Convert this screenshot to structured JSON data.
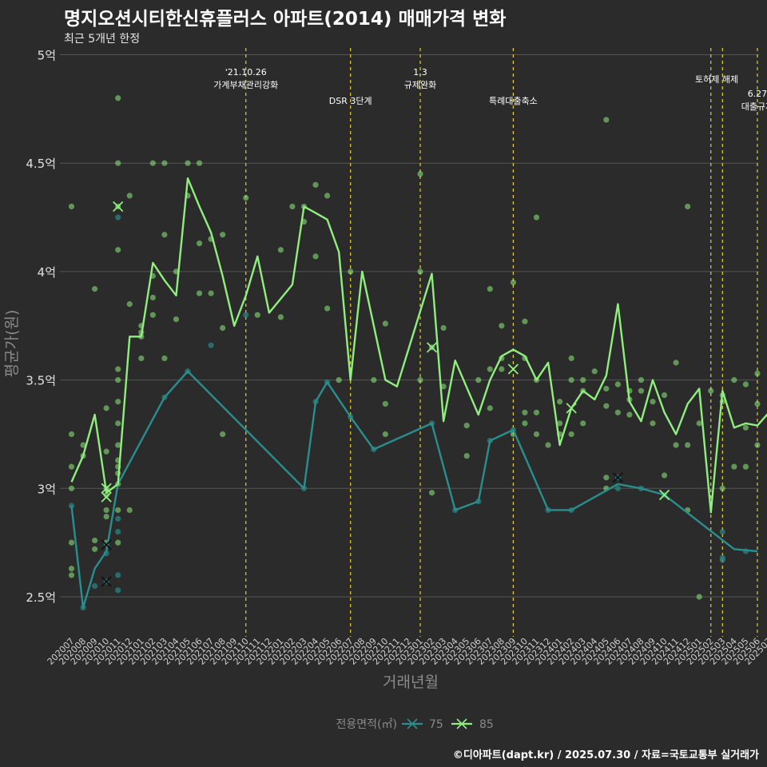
{
  "header": {
    "title": "명지오션시티한신휴플러스 아파트(2014) 매매가격 변화",
    "subtitle": "최근 5개년 한정"
  },
  "footer": {
    "credit": "©디아파트(dapt.kr) / 2025.07.30 / 자료=국토교통부 실거래가"
  },
  "colors": {
    "background": "#2b2b2b",
    "grid": "#555555",
    "series_75": "#2a8e8e",
    "series_85": "#90ee7e",
    "policy_line": "#e8d21a"
  },
  "chart_data": {
    "type": "line",
    "xlabel": "거래년월",
    "ylabel": "평균가(원)",
    "ylim": [
      2.33,
      5.0
    ],
    "yticks": [
      2.5,
      3.0,
      3.5,
      4.0,
      4.5,
      5.0
    ],
    "ytick_labels": [
      "2.5억",
      "3억",
      "3.5억",
      "4억",
      "4.5억",
      "5억"
    ],
    "grid": true,
    "legend_position": "bottom",
    "legend_title": "전용면적(㎡)",
    "categories": [
      "202007",
      "202008",
      "202009",
      "202010",
      "202011",
      "202012",
      "202101",
      "202102",
      "202103",
      "202104",
      "202105",
      "202106",
      "202107",
      "202108",
      "202109",
      "202110",
      "202111",
      "202112",
      "202201",
      "202202",
      "202203",
      "202204",
      "202205",
      "202206",
      "202207",
      "202208",
      "202209",
      "202210",
      "202211",
      "202212",
      "202301",
      "202302",
      "202303",
      "202304",
      "202305",
      "202306",
      "202307",
      "202308",
      "202309",
      "202310",
      "202311",
      "202312",
      "202401",
      "202402",
      "202403",
      "202404",
      "202405",
      "202406",
      "202407",
      "202408",
      "202409",
      "202410",
      "202411",
      "202412",
      "202501",
      "202502",
      "202503",
      "202504",
      "202505",
      "202506",
      "202507"
    ],
    "series": [
      {
        "name": "75",
        "color": "#2a8e8e",
        "points": [
          [
            "202007",
            2.92
          ],
          [
            "202008",
            2.45
          ],
          [
            "202009",
            2.63
          ],
          [
            "202010",
            2.71
          ],
          [
            "202011",
            3.02
          ],
          [
            "202103",
            3.42
          ],
          [
            "202105",
            3.54
          ],
          [
            "202203",
            3.0
          ],
          [
            "202204",
            3.4
          ],
          [
            "202205",
            3.49
          ],
          [
            "202207",
            3.33
          ],
          [
            "202209",
            3.18
          ],
          [
            "202302",
            3.3
          ],
          [
            "202304",
            2.9
          ],
          [
            "202306",
            2.94
          ],
          [
            "202307",
            3.22
          ],
          [
            "202309",
            3.27
          ],
          [
            "202312",
            2.9
          ],
          [
            "202402",
            2.9
          ],
          [
            "202406",
            3.02
          ],
          [
            "202408",
            3.0
          ],
          [
            "202410",
            2.97
          ],
          [
            "202504",
            2.72
          ],
          [
            "202506",
            2.71
          ]
        ]
      },
      {
        "name": "85",
        "color": "#90ee7e",
        "points": [
          [
            "202007",
            3.03
          ],
          [
            "202008",
            3.15
          ],
          [
            "202009",
            3.34
          ],
          [
            "202010",
            2.98
          ],
          [
            "202011",
            3.02
          ],
          [
            "202012",
            3.7
          ],
          [
            "202101",
            3.7
          ],
          [
            "202102",
            4.04
          ],
          [
            "202103",
            3.96
          ],
          [
            "202104",
            3.89
          ],
          [
            "202105",
            4.43
          ],
          [
            "202106",
            4.3
          ],
          [
            "202107",
            4.18
          ],
          [
            "202108",
            3.98
          ],
          [
            "202109",
            3.75
          ],
          [
            "202110",
            3.89
          ],
          [
            "202111",
            4.07
          ],
          [
            "202112",
            3.81
          ],
          [
            "202202",
            3.94
          ],
          [
            "202203",
            4.3
          ],
          [
            "202204",
            4.27
          ],
          [
            "202205",
            4.24
          ],
          [
            "202206",
            4.09
          ],
          [
            "202207",
            3.5
          ],
          [
            "202208",
            4.0
          ],
          [
            "202210",
            3.5
          ],
          [
            "202211",
            3.47
          ],
          [
            "202302",
            3.99
          ],
          [
            "202303",
            3.31
          ],
          [
            "202304",
            3.59
          ],
          [
            "202306",
            3.34
          ],
          [
            "202307",
            3.5
          ],
          [
            "202308",
            3.61
          ],
          [
            "202309",
            3.64
          ],
          [
            "202310",
            3.61
          ],
          [
            "202311",
            3.5
          ],
          [
            "202312",
            3.58
          ],
          [
            "202401",
            3.2
          ],
          [
            "202402",
            3.37
          ],
          [
            "202403",
            3.45
          ],
          [
            "202404",
            3.41
          ],
          [
            "202405",
            3.52
          ],
          [
            "202406",
            3.85
          ],
          [
            "202407",
            3.4
          ],
          [
            "202408",
            3.31
          ],
          [
            "202409",
            3.5
          ],
          [
            "202410",
            3.35
          ],
          [
            "202411",
            3.25
          ],
          [
            "202412",
            3.39
          ],
          [
            "202501",
            3.46
          ],
          [
            "202502",
            2.89
          ],
          [
            "202503",
            3.45
          ],
          [
            "202504",
            3.28
          ],
          [
            "202505",
            3.3
          ],
          [
            "202506",
            3.29
          ],
          [
            "202507",
            3.35
          ]
        ]
      }
    ],
    "scatter_85": [
      [
        "202007",
        4.3
      ],
      [
        "202007",
        3.25
      ],
      [
        "202007",
        3.1
      ],
      [
        "202007",
        3.0
      ],
      [
        "202007",
        2.75
      ],
      [
        "202007",
        2.63
      ],
      [
        "202007",
        2.6
      ],
      [
        "202008",
        3.2
      ],
      [
        "202008",
        3.15
      ],
      [
        "202009",
        3.92
      ],
      [
        "202009",
        2.76
      ],
      [
        "202009",
        2.72
      ],
      [
        "202010",
        3.37
      ],
      [
        "202010",
        3.17
      ],
      [
        "202010",
        3.0
      ],
      [
        "202010",
        2.97
      ],
      [
        "202010",
        2.9
      ],
      [
        "202010",
        2.87
      ],
      [
        "202010",
        2.75
      ],
      [
        "202011",
        4.8
      ],
      [
        "202011",
        4.5
      ],
      [
        "202011",
        4.3
      ],
      [
        "202011",
        4.1
      ],
      [
        "202011",
        3.55
      ],
      [
        "202011",
        3.5
      ],
      [
        "202011",
        3.4
      ],
      [
        "202011",
        3.3
      ],
      [
        "202011",
        3.2
      ],
      [
        "202011",
        3.13
      ],
      [
        "202011",
        3.1
      ],
      [
        "202011",
        3.07
      ],
      [
        "202011",
        3.02
      ],
      [
        "202011",
        2.9
      ],
      [
        "202011",
        2.75
      ],
      [
        "202012",
        4.35
      ],
      [
        "202012",
        3.85
      ],
      [
        "202012",
        2.9
      ],
      [
        "202101",
        3.75
      ],
      [
        "202101",
        3.72
      ],
      [
        "202101",
        3.7
      ],
      [
        "202101",
        3.6
      ],
      [
        "202102",
        4.5
      ],
      [
        "202102",
        3.98
      ],
      [
        "202102",
        3.88
      ],
      [
        "202102",
        3.8
      ],
      [
        "202103",
        4.5
      ],
      [
        "202103",
        4.17
      ],
      [
        "202103",
        3.6
      ],
      [
        "202104",
        4.0
      ],
      [
        "202104",
        3.78
      ],
      [
        "202105",
        4.5
      ],
      [
        "202105",
        4.35
      ],
      [
        "202106",
        4.5
      ],
      [
        "202106",
        4.13
      ],
      [
        "202106",
        3.9
      ],
      [
        "202107",
        4.15
      ],
      [
        "202107",
        3.9
      ],
      [
        "202108",
        4.17
      ],
      [
        "202108",
        3.74
      ],
      [
        "202108",
        3.25
      ],
      [
        "202110",
        4.34
      ],
      [
        "202111",
        3.8
      ],
      [
        "202201",
        4.1
      ],
      [
        "202201",
        3.79
      ],
      [
        "202202",
        4.3
      ],
      [
        "202203",
        4.23
      ],
      [
        "202203",
        4.3
      ],
      [
        "202204",
        4.4
      ],
      [
        "202204",
        4.07
      ],
      [
        "202205",
        4.35
      ],
      [
        "202205",
        3.83
      ],
      [
        "202206",
        3.5
      ],
      [
        "202207",
        4.0
      ],
      [
        "202209",
        3.5
      ],
      [
        "202210",
        3.76
      ],
      [
        "202210",
        3.39
      ],
      [
        "202210",
        3.25
      ],
      [
        "202301",
        4.45
      ],
      [
        "202301",
        4.0
      ],
      [
        "202301",
        3.5
      ],
      [
        "202302",
        3.65
      ],
      [
        "202302",
        2.98
      ],
      [
        "202303",
        3.74
      ],
      [
        "202303",
        3.47
      ],
      [
        "202305",
        3.29
      ],
      [
        "202305",
        3.15
      ],
      [
        "202306",
        3.5
      ],
      [
        "202307",
        3.92
      ],
      [
        "202307",
        3.55
      ],
      [
        "202307",
        3.37
      ],
      [
        "202308",
        3.75
      ],
      [
        "202308",
        3.6
      ],
      [
        "202308",
        3.55
      ],
      [
        "202309",
        3.95
      ],
      [
        "202309",
        3.25
      ],
      [
        "202310",
        3.77
      ],
      [
        "202310",
        3.6
      ],
      [
        "202310",
        3.35
      ],
      [
        "202310",
        3.3
      ],
      [
        "202311",
        4.25
      ],
      [
        "202311",
        3.5
      ],
      [
        "202311",
        3.35
      ],
      [
        "202311",
        3.25
      ],
      [
        "202312",
        3.2
      ],
      [
        "202401",
        3.4
      ],
      [
        "202401",
        3.3
      ],
      [
        "202401",
        3.25
      ],
      [
        "202402",
        3.6
      ],
      [
        "202402",
        3.5
      ],
      [
        "202402",
        3.25
      ],
      [
        "202403",
        3.5
      ],
      [
        "202403",
        3.45
      ],
      [
        "202403",
        3.3
      ],
      [
        "202404",
        3.54
      ],
      [
        "202405",
        4.7
      ],
      [
        "202405",
        3.46
      ],
      [
        "202405",
        3.38
      ],
      [
        "202405",
        3.05
      ],
      [
        "202405",
        3.0
      ],
      [
        "202406",
        3.48
      ],
      [
        "202406",
        3.35
      ],
      [
        "202407",
        3.45
      ],
      [
        "202407",
        3.41
      ],
      [
        "202407",
        3.34
      ],
      [
        "202408",
        3.5
      ],
      [
        "202408",
        3.45
      ],
      [
        "202409",
        3.4
      ],
      [
        "202409",
        3.3
      ],
      [
        "202410",
        3.43
      ],
      [
        "202410",
        3.06
      ],
      [
        "202411",
        3.58
      ],
      [
        "202411",
        3.2
      ],
      [
        "202412",
        4.3
      ],
      [
        "202412",
        3.2
      ],
      [
        "202412",
        2.9
      ],
      [
        "202501",
        3.3
      ],
      [
        "202501",
        2.5
      ],
      [
        "202502",
        3.45
      ],
      [
        "202503",
        3.43
      ],
      [
        "202503",
        3.4
      ],
      [
        "202503",
        3.0
      ],
      [
        "202504",
        3.5
      ],
      [
        "202504",
        3.1
      ],
      [
        "202505",
        3.48
      ],
      [
        "202505",
        3.28
      ],
      [
        "202505",
        3.1
      ],
      [
        "202506",
        3.53
      ],
      [
        "202506",
        3.39
      ],
      [
        "202506",
        3.2
      ]
    ],
    "scatter_75": [
      [
        "202007",
        2.92
      ],
      [
        "202008",
        2.45
      ],
      [
        "202009",
        2.55
      ],
      [
        "202010",
        2.74
      ],
      [
        "202010",
        2.7
      ],
      [
        "202010",
        2.57
      ],
      [
        "202011",
        4.25
      ],
      [
        "202011",
        2.86
      ],
      [
        "202011",
        2.8
      ],
      [
        "202011",
        2.6
      ],
      [
        "202011",
        2.53
      ],
      [
        "202103",
        3.42
      ],
      [
        "202105",
        3.54
      ],
      [
        "202107",
        3.66
      ],
      [
        "202110",
        3.8
      ],
      [
        "202203",
        3.0
      ],
      [
        "202204",
        3.4
      ],
      [
        "202205",
        3.49
      ],
      [
        "202207",
        3.33
      ],
      [
        "202209",
        3.18
      ],
      [
        "202302",
        3.3
      ],
      [
        "202304",
        2.9
      ],
      [
        "202306",
        2.94
      ],
      [
        "202307",
        3.22
      ],
      [
        "202309",
        3.27
      ],
      [
        "202312",
        2.9
      ],
      [
        "202402",
        2.9
      ],
      [
        "202406",
        3.05
      ],
      [
        "202406",
        3.0
      ],
      [
        "202408",
        3.0
      ],
      [
        "202410",
        2.97
      ],
      [
        "202503",
        2.8
      ],
      [
        "202503",
        2.68
      ],
      [
        "202503",
        2.67
      ],
      [
        "202505",
        2.71
      ]
    ],
    "cross_75": [
      [
        "202010",
        2.74
      ],
      [
        "202010",
        2.57
      ],
      [
        "202406",
        3.05
      ]
    ],
    "cross_85": [
      [
        "202010",
        3.0
      ],
      [
        "202010",
        2.96
      ],
      [
        "202011",
        4.3
      ],
      [
        "202302",
        3.65
      ],
      [
        "202309",
        3.55
      ],
      [
        "202402",
        3.37
      ],
      [
        "202410",
        2.97
      ]
    ],
    "annotations": [
      {
        "at": "202110",
        "lines": [
          "'21.10.26",
          "가계부채관리강화"
        ],
        "level": 1
      },
      {
        "at": "202207",
        "lines": [
          "DSR 3단계"
        ],
        "level": 3
      },
      {
        "at": "202301",
        "lines": [
          "1.3",
          "규제완화"
        ],
        "level": 1
      },
      {
        "at": "202309",
        "lines": [
          "특례대출축소"
        ],
        "level": 3
      },
      {
        "at": "202502",
        "lines": [
          "토허제 해제"
        ],
        "level": 2,
        "offset": 0.5
      },
      {
        "at": "202506",
        "lines": [
          "6.27",
          "대출규제"
        ],
        "level": 4
      }
    ],
    "policy_lines_at": [
      [
        "202110",
        0
      ],
      [
        "202207",
        0
      ],
      [
        "202301",
        0
      ],
      [
        "202309",
        0
      ],
      [
        "202502",
        0
      ],
      [
        "202503",
        0
      ],
      [
        "202506",
        0
      ]
    ]
  }
}
